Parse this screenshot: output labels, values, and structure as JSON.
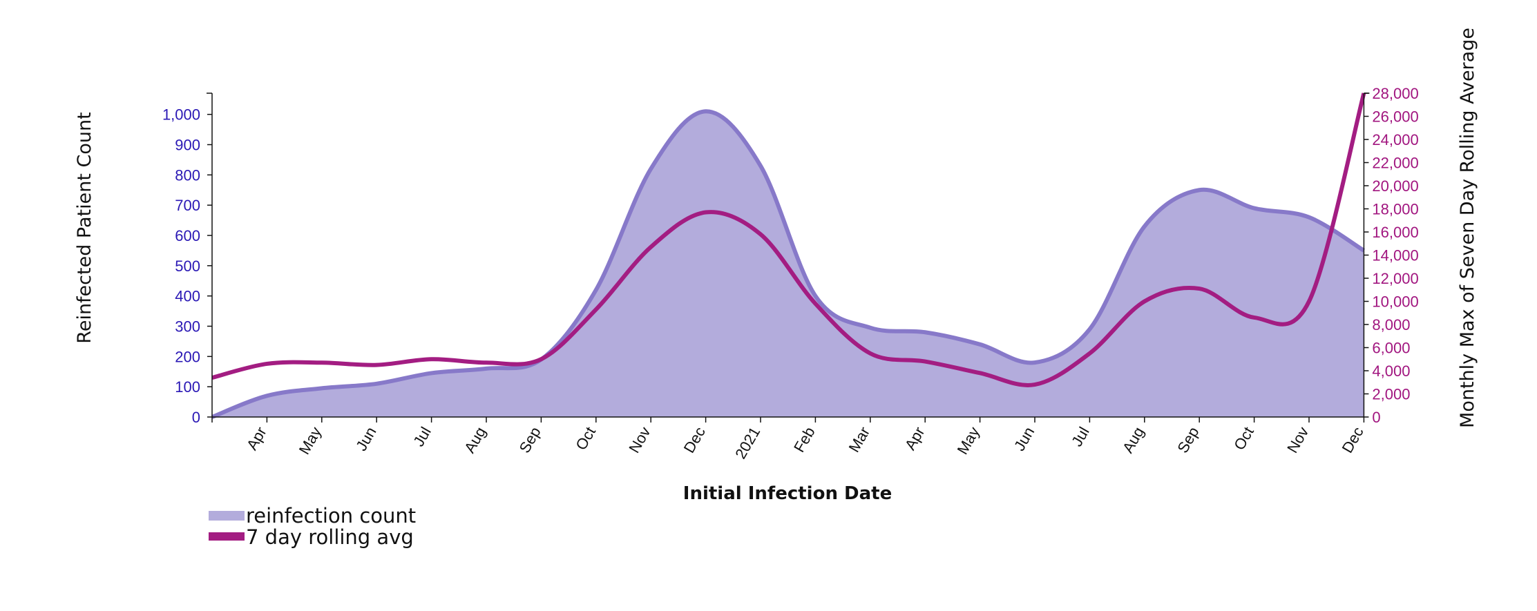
{
  "chart_data": {
    "type": "area",
    "x_axis": {
      "title": "Initial Infection Date",
      "tick_labels": [
        "Apr",
        "May",
        "Jun",
        "Jul",
        "Aug",
        "Sep",
        "Oct",
        "Nov",
        "Dec",
        "2021",
        "Feb",
        "Mar",
        "Apr",
        "May",
        "Jun",
        "Jul",
        "Aug",
        "Sep",
        "Oct",
        "Nov",
        "Dec"
      ]
    },
    "y_left": {
      "title": "Reinfected Patient Count",
      "range": [
        0,
        1070
      ],
      "ticks": [
        0,
        100,
        200,
        300,
        400,
        500,
        600,
        700,
        800,
        900,
        1000
      ],
      "tick_labels": [
        "0",
        "100",
        "200",
        "300",
        "400",
        "500",
        "600",
        "700",
        "800",
        "900",
        "1,000"
      ],
      "color": "#2a18b5"
    },
    "y_right": {
      "title": "Monthly Max of Seven Day Rolling Average",
      "range": [
        0,
        28000
      ],
      "ticks": [
        0,
        2000,
        4000,
        6000,
        8000,
        10000,
        12000,
        14000,
        16000,
        18000,
        20000,
        22000,
        24000,
        26000,
        28000
      ],
      "tick_labels": [
        "0",
        "2,000",
        "4,000",
        "6,000",
        "8,000",
        "10,000",
        "12,000",
        "14,000",
        "16,000",
        "18,000",
        "20,000",
        "22,000",
        "24,000",
        "26,000",
        "28,000"
      ],
      "color": "#a1157f"
    },
    "series": [
      {
        "name": "reinfection count",
        "type": "area",
        "axis": "left",
        "x": [
          0,
          1,
          2,
          3,
          4,
          5,
          6,
          7,
          8,
          9,
          10,
          11,
          12,
          13,
          14,
          15,
          16,
          17,
          18,
          19,
          20,
          21
        ],
        "values": [
          0,
          70,
          95,
          110,
          145,
          160,
          190,
          420,
          820,
          1010,
          830,
          400,
          295,
          280,
          240,
          180,
          290,
          630,
          750,
          690,
          660,
          550
        ],
        "fill": "#b3acdc",
        "stroke": "#8779c9"
      },
      {
        "name": "7 day rolling avg",
        "type": "line",
        "axis": "right",
        "x": [
          0,
          1,
          2,
          3,
          4,
          5,
          6,
          7,
          8,
          9,
          10,
          11,
          12,
          13,
          14,
          15,
          16,
          17,
          18,
          19,
          20,
          21
        ],
        "values": [
          3400,
          4600,
          4700,
          4500,
          5000,
          4700,
          5000,
          9300,
          14700,
          17700,
          15800,
          9800,
          5500,
          4800,
          3800,
          2800,
          5500,
          10000,
          11100,
          8600,
          10000,
          28000
        ],
        "stroke": "#a31d82"
      }
    ],
    "legend": {
      "placement": "bottom-left",
      "items": [
        {
          "label": "reinfection count",
          "color": "#b3acdc"
        },
        {
          "label": "7 day rolling avg",
          "color": "#a31d82"
        }
      ]
    },
    "grid": false
  }
}
